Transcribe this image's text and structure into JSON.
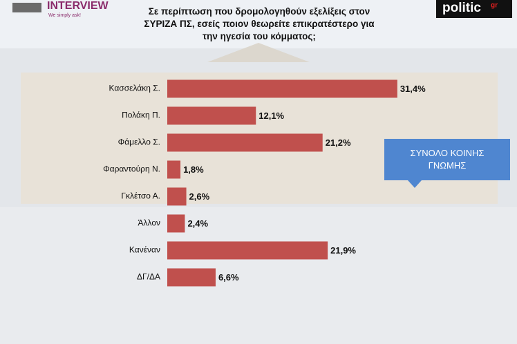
{
  "header": {
    "brand": "INTERVIEW",
    "tagline": "We simply ask!",
    "source": "politic",
    "source_suffix": "gr"
  },
  "chart_data": {
    "type": "bar",
    "orientation": "horizontal",
    "title": "Σε περίπτωση που δρομολογηθούν εξελίξεις στον\nΣΥΡΙΖΑ ΠΣ, εσείς ποιον θεωρείτε επικρατέστερο για\nτην ηγεσία του κόμματος;",
    "categories": [
      "Κασσελάκη Σ.",
      "Πολάκη Π.",
      "Φάμελλο Σ.",
      "Φαραντούρη Ν.",
      "Γκλέτσο Α.",
      "Άλλον",
      "Κανέναν",
      "ΔΓ/ΔΑ"
    ],
    "values": [
      31.4,
      12.1,
      21.2,
      1.8,
      2.6,
      2.4,
      21.9,
      6.6
    ],
    "value_labels": [
      "31,4%",
      "12,1%",
      "21,2%",
      "1,8%",
      "2,6%",
      "2,4%",
      "21,9%",
      "6,6%"
    ],
    "color": "#c0504d",
    "annotation": "ΣΥΝΟΛΟ ΚΟΙΝΗΣ\nΓΝΩΜΗΣ"
  }
}
